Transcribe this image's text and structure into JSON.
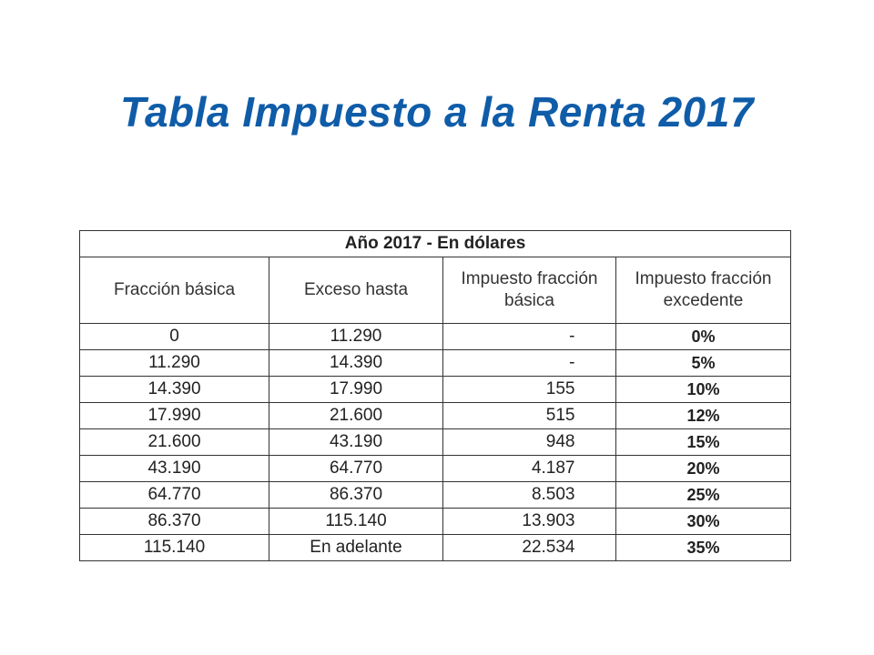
{
  "title": "Tabla Impuesto a la Renta 2017",
  "colors": {
    "title": "#0f5ca8",
    "border": "#333333"
  },
  "table": {
    "caption": "Año 2017 - En dólares",
    "headers": [
      "Fracción básica",
      "Exceso hasta",
      "Impuesto fracción básica",
      "Impuesto fracción excedente"
    ],
    "rows": [
      [
        "0",
        "11.290",
        "-",
        "0%"
      ],
      [
        "11.290",
        "14.390",
        "-",
        "5%"
      ],
      [
        "14.390",
        "17.990",
        "155",
        "10%"
      ],
      [
        "17.990",
        "21.600",
        "515",
        "12%"
      ],
      [
        "21.600",
        "43.190",
        "948",
        "15%"
      ],
      [
        "43.190",
        "64.770",
        "4.187",
        "20%"
      ],
      [
        "64.770",
        "86.370",
        "8.503",
        "25%"
      ],
      [
        "86.370",
        "115.140",
        "13.903",
        "30%"
      ],
      [
        "115.140",
        "En adelante",
        "22.534",
        "35%"
      ]
    ]
  }
}
